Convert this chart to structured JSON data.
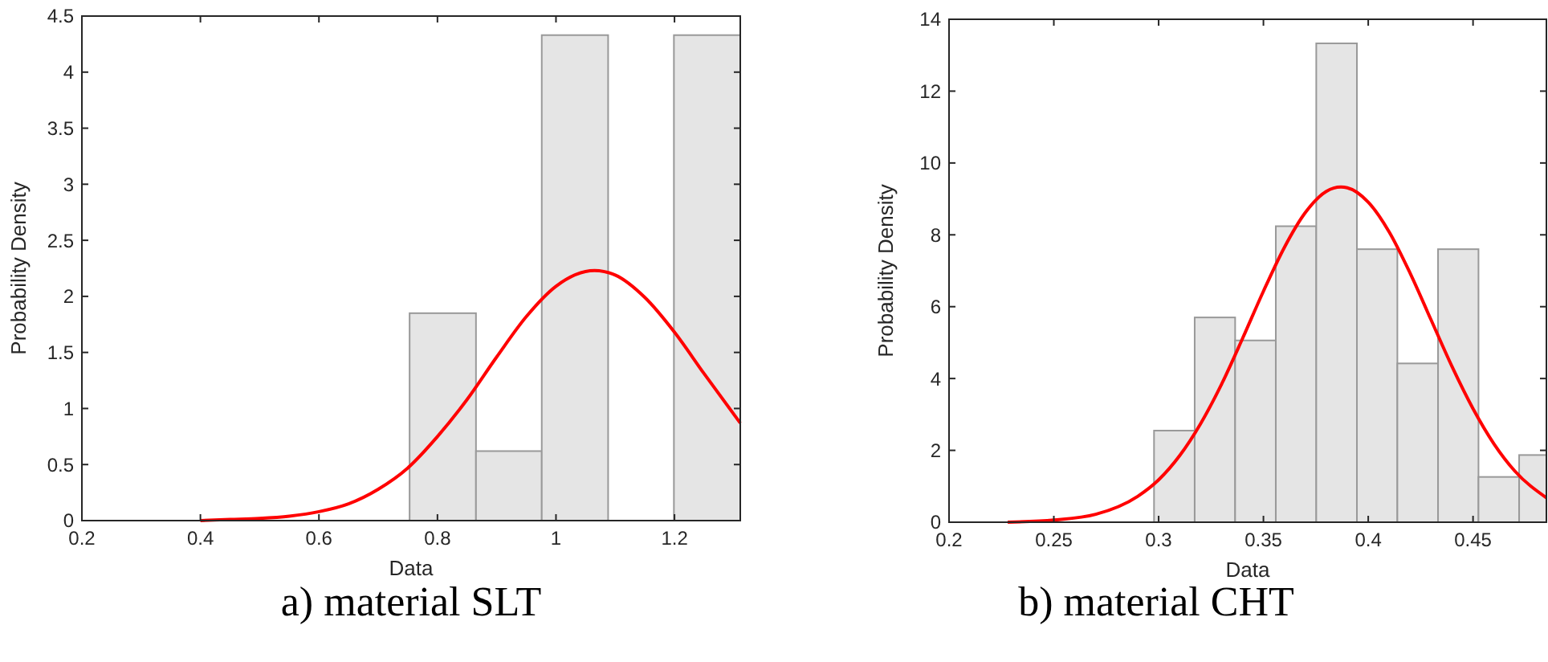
{
  "chart_data": [
    {
      "type": "histogram",
      "title": "a) material SLT",
      "xlabel": "Data",
      "ylabel": "Probability Density",
      "bins": [
        0.753,
        0.865,
        0.976,
        1.088,
        1.199,
        1.311
      ],
      "values": [
        1.85,
        0.62,
        4.33,
        0,
        4.33
      ],
      "color": "#e5e5e5",
      "series": [
        {
          "type": "line",
          "color": "#ff0000",
          "x": [
            0.4,
            0.45,
            0.5,
            0.55,
            0.6,
            0.65,
            0.7,
            0.75,
            0.8,
            0.85,
            0.9,
            0.95,
            1.0,
            1.065,
            1.1,
            1.15,
            1.2,
            1.25,
            1.311
          ],
          "values": [
            0,
            0.01,
            0.02,
            0.04,
            0.08,
            0.15,
            0.28,
            0.47,
            0.75,
            1.08,
            1.46,
            1.82,
            2.09,
            2.23,
            2.19,
            1.99,
            1.68,
            1.31,
            0.87
          ]
        }
      ],
      "xlim": [
        0.2,
        1.311
      ],
      "ylim": [
        0,
        4.5
      ],
      "xticks": [
        0.2,
        0.4,
        0.6,
        0.8,
        1,
        1.2
      ],
      "yticks": [
        0,
        0.5,
        1,
        1.5,
        2,
        2.5,
        3,
        3.5,
        4,
        4.5
      ]
    },
    {
      "type": "histogram",
      "title": "b) material CHT",
      "xlabel": "Data",
      "ylabel": "Probability Density",
      "bins": [
        0.2978,
        0.3172,
        0.3365,
        0.3559,
        0.3752,
        0.3946,
        0.4139,
        0.4333,
        0.4526,
        0.472,
        0.485
      ],
      "values": [
        2.55,
        5.7,
        5.06,
        8.24,
        13.33,
        7.6,
        4.42,
        7.6,
        1.26,
        1.87
      ],
      "color": "#e5e5e5",
      "series": [
        {
          "type": "line",
          "color": "#ff0000",
          "x": [
            0.228,
            0.25,
            0.27,
            0.29,
            0.3,
            0.31,
            0.32,
            0.33,
            0.34,
            0.35,
            0.36,
            0.37,
            0.38,
            0.387,
            0.39,
            0.4,
            0.41,
            0.42,
            0.43,
            0.44,
            0.45,
            0.46,
            0.47,
            0.485
          ],
          "values": [
            0,
            0.06,
            0.22,
            0.72,
            1.18,
            1.85,
            2.74,
            3.84,
            5.11,
            6.43,
            7.65,
            8.62,
            9.21,
            9.33,
            9.31,
            8.91,
            8.08,
            6.93,
            5.63,
            4.33,
            3.16,
            2.18,
            1.42,
            0.68
          ]
        }
      ],
      "xlim": [
        0.2,
        0.485
      ],
      "ylim": [
        0,
        14
      ],
      "xticks": [
        0.2,
        0.25,
        0.3,
        0.35,
        0.4,
        0.45
      ],
      "yticks": [
        0,
        2,
        4,
        6,
        8,
        10,
        12,
        14
      ]
    }
  ]
}
